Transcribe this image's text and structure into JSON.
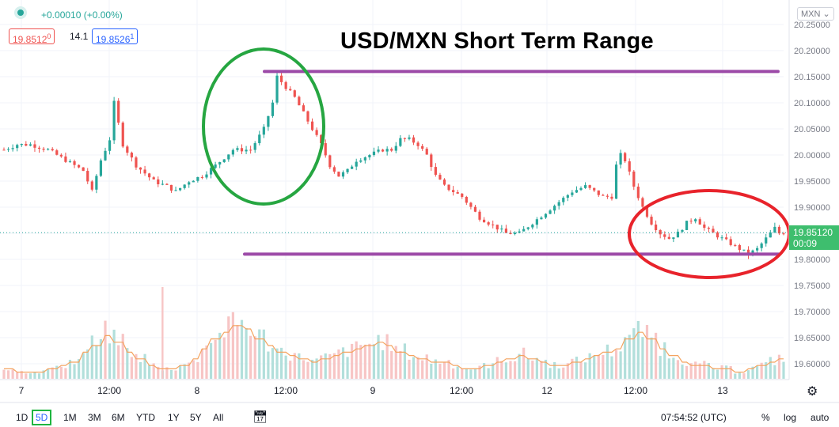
{
  "header": {
    "change": "+0.00010 (+0.00%)",
    "bid": "19.8512",
    "bid_sup": "0",
    "spread": "14.1",
    "ask": "19.8526",
    "ask_sup": "1",
    "symbol_dropdown": "MXN",
    "colors": {
      "up": "#26a69a",
      "down": "#ef5350",
      "accent": "#2962ff",
      "range_line": "#9c4aa8",
      "circle_green": "#26a641",
      "circle_red": "#e8232b"
    }
  },
  "annotation_title": "USD/MXN Short Term Range",
  "toolbar": {
    "timeframes": [
      "1D",
      "5D",
      "1M",
      "3M",
      "6M",
      "YTD",
      "1Y",
      "5Y",
      "All"
    ],
    "selected": "5D",
    "compare_icon": "calendar-range-icon",
    "clock": "07:54:52 (UTC)",
    "percent": "%",
    "log": "log",
    "auto": "auto",
    "settings_icon": "gear-icon"
  },
  "last_price": {
    "value": "19.85120",
    "countdown": "00:09"
  },
  "chart_data": {
    "type": "candlestick",
    "symbol": "USD/MXN",
    "title": "USD/MXN Short Term Range",
    "x_tick_labels": [
      "7",
      "12:00",
      "8",
      "12:00",
      "9",
      "12:00",
      "12",
      "12:00",
      "13"
    ],
    "y_tick_labels": [
      "20.25000",
      "20.20000",
      "20.15000",
      "20.10000",
      "20.05000",
      "20.00000",
      "19.95000",
      "19.90000",
      "19.85000",
      "19.80000",
      "19.75000",
      "19.70000",
      "19.65000",
      "19.60000"
    ],
    "ylim": [
      19.57,
      20.27
    ],
    "price_path": [
      [
        0,
        20.01
      ],
      [
        3,
        20.02
      ],
      [
        6,
        20.02
      ],
      [
        10,
        20.01
      ],
      [
        14,
        19.99
      ],
      [
        18,
        19.97
      ],
      [
        20,
        19.93
      ],
      [
        22,
        19.99
      ],
      [
        24,
        20.03
      ],
      [
        25,
        20.1
      ],
      [
        27,
        20.02
      ],
      [
        30,
        19.98
      ],
      [
        34,
        19.95
      ],
      [
        37,
        19.94
      ],
      [
        39,
        19.93
      ],
      [
        42,
        19.95
      ],
      [
        45,
        19.96
      ],
      [
        48,
        19.98
      ],
      [
        52,
        20.01
      ],
      [
        56,
        20.01
      ],
      [
        59,
        20.05
      ],
      [
        61,
        20.1
      ],
      [
        62,
        20.15
      ],
      [
        64,
        20.13
      ],
      [
        66,
        20.11
      ],
      [
        68,
        20.08
      ],
      [
        70,
        20.05
      ],
      [
        72,
        20.02
      ],
      [
        74,
        19.98
      ],
      [
        76,
        19.96
      ],
      [
        78,
        19.97
      ],
      [
        80,
        19.99
      ],
      [
        83,
        20.0
      ],
      [
        86,
        20.01
      ],
      [
        88,
        20.01
      ],
      [
        90,
        20.03
      ],
      [
        92,
        20.03
      ],
      [
        94,
        20.02
      ],
      [
        96,
        20.0
      ],
      [
        98,
        19.96
      ],
      [
        100,
        19.94
      ],
      [
        102,
        19.93
      ],
      [
        104,
        19.92
      ],
      [
        106,
        19.9
      ],
      [
        108,
        19.88
      ],
      [
        110,
        19.87
      ],
      [
        112,
        19.86
      ],
      [
        114,
        19.85
      ],
      [
        117,
        19.85
      ],
      [
        120,
        19.87
      ],
      [
        123,
        19.89
      ],
      [
        126,
        19.91
      ],
      [
        129,
        19.93
      ],
      [
        132,
        19.94
      ],
      [
        134,
        19.93
      ],
      [
        136,
        19.92
      ],
      [
        138,
        19.92
      ],
      [
        139,
        19.98
      ],
      [
        140,
        20.0
      ],
      [
        141,
        19.99
      ],
      [
        143,
        19.94
      ],
      [
        145,
        19.9
      ],
      [
        147,
        19.87
      ],
      [
        149,
        19.85
      ],
      [
        151,
        19.84
      ],
      [
        153,
        19.85
      ],
      [
        155,
        19.87
      ],
      [
        157,
        19.88
      ],
      [
        159,
        19.86
      ],
      [
        161,
        19.85
      ],
      [
        163,
        19.84
      ],
      [
        165,
        19.83
      ],
      [
        167,
        19.82
      ],
      [
        169,
        19.81
      ],
      [
        171,
        19.82
      ],
      [
        173,
        19.84
      ],
      [
        175,
        19.86
      ],
      [
        176,
        19.85
      ],
      [
        177,
        19.851
      ]
    ],
    "range_high": 20.16,
    "range_low": 19.81,
    "last_price": 19.8512,
    "volume_profile": [
      3,
      2,
      2,
      2,
      3,
      4,
      5,
      8,
      10,
      13,
      11,
      8,
      6,
      4,
      3,
      3,
      4,
      6,
      9,
      12,
      14,
      16,
      15,
      12,
      10,
      8,
      7,
      6,
      5,
      6,
      7,
      8,
      9,
      10,
      11,
      10,
      8,
      7,
      6,
      5,
      5,
      4,
      3,
      3,
      4,
      5,
      6,
      7,
      6,
      5,
      4,
      4,
      5,
      6,
      7,
      8,
      9,
      12,
      14,
      12,
      9,
      7,
      5,
      4,
      4,
      3,
      3,
      2,
      3,
      4,
      5,
      6
    ],
    "grid": true
  }
}
